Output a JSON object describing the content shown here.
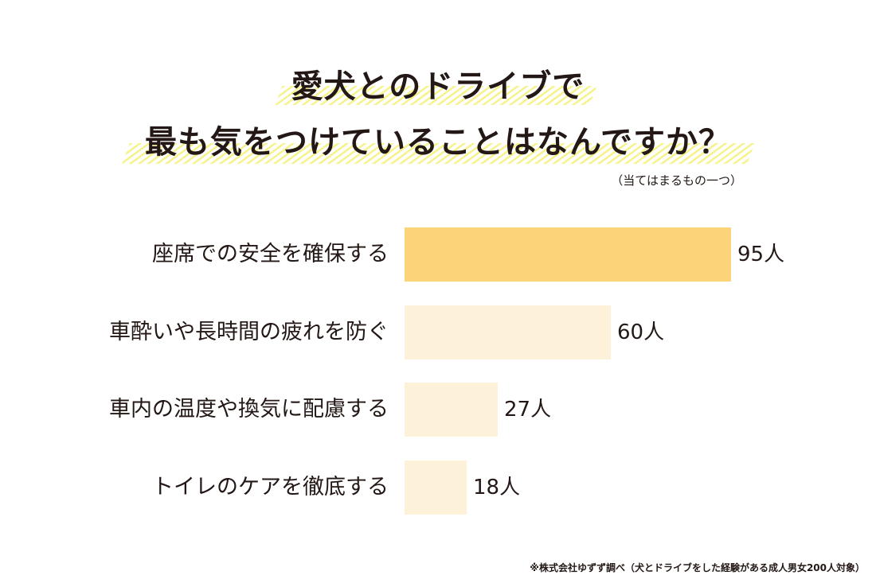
{
  "title": {
    "line1": "愛犬とのドライブで",
    "line2": "最も気をつけていることはなんですか？"
  },
  "note": "（当てはまるもの一つ）",
  "colors": {
    "highlight_bar": "#FDD37A",
    "other_bar": "#FEF1DA",
    "hatch": "#F5F078",
    "text": "#231815"
  },
  "rows": [
    {
      "label": "座席での安全を確保する",
      "value_label": "95人"
    },
    {
      "label": "車酔いや長時間の疲れを防ぐ",
      "value_label": "60人"
    },
    {
      "label": "車内の温度や換気に配慮する",
      "value_label": "27人"
    },
    {
      "label": "トイレのケアを徹底する",
      "value_label": "18人"
    }
  ],
  "source": "※株式会社ゆずず調べ（犬とドライブをした経験がある成人男女200人対象）",
  "chart_data": {
    "type": "bar",
    "orientation": "horizontal",
    "title": "愛犬とのドライブで最も気をつけていることはなんですか？",
    "subtitle": "（当てはまるもの一つ）",
    "categories": [
      "座席での安全を確保する",
      "車酔いや長時間の疲れを防ぐ",
      "車内の温度や換気に配慮する",
      "トイレのケアを徹底する"
    ],
    "values": [
      95,
      60,
      27,
      18
    ],
    "unit": "人",
    "xlabel": "",
    "ylabel": "",
    "grid": false,
    "legend": null,
    "annotations": [
      "※株式会社ゆずず調べ（犬とドライブをした経験がある成人男女200人対象）"
    ]
  }
}
